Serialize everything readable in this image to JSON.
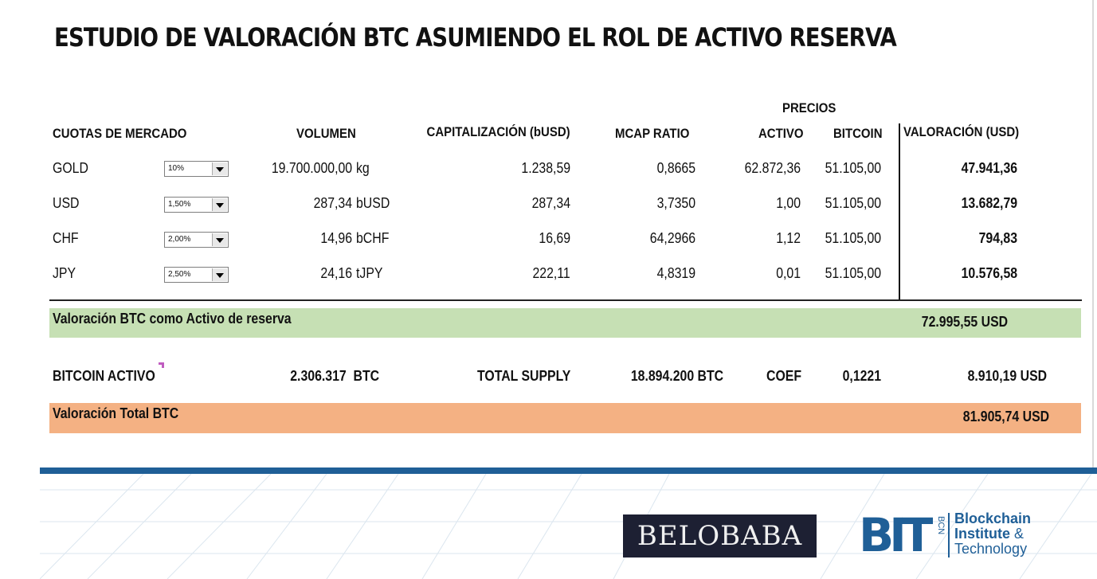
{
  "title": "ESTUDIO DE VALORACIÓN BTC ASUMIENDO EL ROL DE ACTIVO RESERVA",
  "headers": {
    "precios": "PRECIOS",
    "cuotas": "CUOTAS DE MERCADO",
    "volumen": "VOLUMEN",
    "capitalizacion": "CAPITALIZACIÓN (bUSD)",
    "mcap_ratio": "MCAP RATIO",
    "activo": "ACTIVO",
    "bitcoin": "BITCOIN",
    "valoracion": "VALORACIÓN (USD)"
  },
  "rows": [
    {
      "asset": "GOLD",
      "share": "10%",
      "volume": "19.700.000,00",
      "unit": "kg",
      "cap": "1.238,59",
      "ratio": "0,8665",
      "price_asset": "62.872,36",
      "price_btc": "51.105,00",
      "valuation": "47.941,36"
    },
    {
      "asset": "USD",
      "share": "1,50%",
      "volume": "287,34",
      "unit": "bUSD",
      "cap": "287,34",
      "ratio": "3,7350",
      "price_asset": "1,00",
      "price_btc": "51.105,00",
      "valuation": "13.682,79"
    },
    {
      "asset": "CHF",
      "share": "2,00%",
      "volume": "14,96",
      "unit": "bCHF",
      "cap": "16,69",
      "ratio": "64,2966",
      "price_asset": "1,12",
      "price_btc": "51.105,00",
      "valuation": "794,83"
    },
    {
      "asset": "JPY",
      "share": "2,50%",
      "volume": "24,16",
      "unit": "tJPY",
      "cap": "222,11",
      "ratio": "4,8319",
      "price_asset": "0,01",
      "price_btc": "51.105,00",
      "valuation": "10.576,58"
    }
  ],
  "reserve": {
    "label": "Valoración BTC como Activo de reserva",
    "value": "72.995,55",
    "unit": "USD"
  },
  "bitcoin_activo": {
    "label": "BITCOIN ACTIVO",
    "amount": "2.306.317",
    "amount_unit": "BTC",
    "supply_label": "TOTAL SUPPLY",
    "supply": "18.894.200",
    "supply_unit": "BTC",
    "coef_label": "COEF",
    "coef": "0,1221",
    "value": "8.910,19",
    "value_unit": "USD"
  },
  "total": {
    "label": "Valoración Total BTC",
    "value": "81.905,74",
    "unit": "USD"
  },
  "logos": {
    "belobaba": "BELOBABA",
    "bit_mark": "BIT",
    "bit_bcn": "BCN",
    "bit_line1": "Blockchain",
    "bit_line2": "Institute",
    "bit_amp": "&",
    "bit_line3": "Technology"
  },
  "colors": {
    "green_band": "#c6e0b4",
    "orange_band": "#f4b183",
    "brand_blue": "#1f5f97",
    "logo_dark": "#1d2033"
  }
}
